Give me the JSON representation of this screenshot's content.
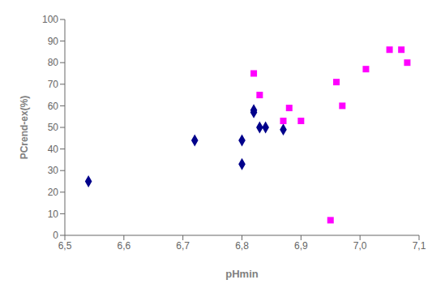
{
  "chart_data": {
    "type": "scatter",
    "xlabel": "pHmin",
    "ylabel": "PCrend-ex(%)",
    "xlim": [
      6.5,
      7.1
    ],
    "ylim": [
      0,
      100
    ],
    "xticks": [
      {
        "value": 6.5,
        "label": "6,5"
      },
      {
        "value": 6.6,
        "label": "6,6"
      },
      {
        "value": 6.7,
        "label": "6,7"
      },
      {
        "value": 6.8,
        "label": "6,8"
      },
      {
        "value": 6.9,
        "label": "6,9"
      },
      {
        "value": 7.0,
        "label": "7,0"
      },
      {
        "value": 7.1,
        "label": "7,1"
      }
    ],
    "yticks": [
      0,
      10,
      20,
      30,
      40,
      50,
      60,
      70,
      80,
      90,
      100
    ],
    "grid": false,
    "series": [
      {
        "color": "#00008B",
        "marker": "diamond",
        "x": [
          6.54,
          6.72,
          6.8,
          6.8,
          6.82,
          6.82,
          6.83,
          6.84,
          6.87
        ],
        "values": [
          25,
          44,
          33,
          44,
          57,
          58,
          50,
          50,
          49
        ]
      },
      {
        "color": "#FF00FF",
        "marker": "square",
        "x": [
          6.82,
          6.83,
          6.87,
          6.88,
          6.9,
          6.95,
          6.96,
          6.97,
          7.01,
          7.05,
          7.07,
          7.08
        ],
        "values": [
          75,
          65,
          53,
          59,
          53,
          7,
          71,
          60,
          77,
          86,
          86,
          80
        ]
      }
    ]
  }
}
